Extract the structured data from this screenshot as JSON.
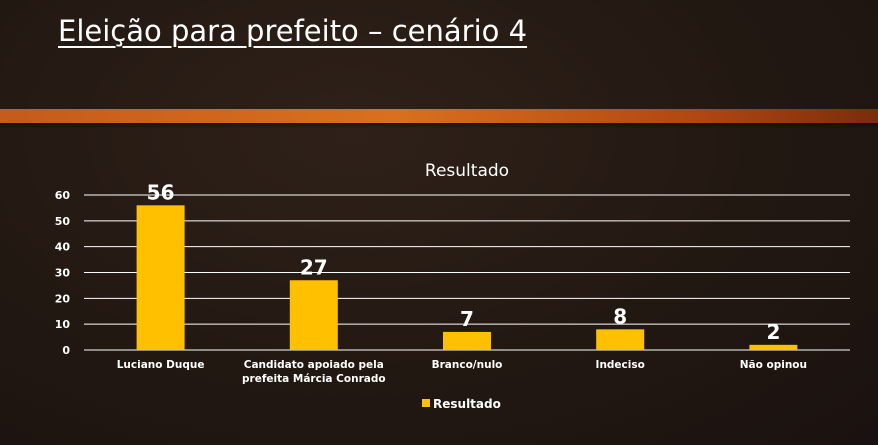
{
  "slide": {
    "title": "Eleição para prefeito – cenário 4"
  },
  "colors": {
    "bar": "#FFC000",
    "accent_band": "#D9701F",
    "grid": "#FFFFFF"
  },
  "chart_data": {
    "type": "bar",
    "title": "Resultado",
    "categories": [
      [
        "Luciano Duque"
      ],
      [
        "Candidato apoiado pela",
        "prefeita Márcia Conrado"
      ],
      [
        "Branco/nulo"
      ],
      [
        "Indeciso"
      ],
      [
        "Não opinou"
      ]
    ],
    "series": [
      {
        "name": "Resultado",
        "values": [
          56,
          27,
          7,
          8,
          2
        ]
      }
    ],
    "ylim": [
      0,
      60
    ],
    "yticks": [
      0,
      10,
      20,
      30,
      40,
      50,
      60
    ],
    "grid": true,
    "legend": "bottom",
    "xlabel": "",
    "ylabel": ""
  }
}
